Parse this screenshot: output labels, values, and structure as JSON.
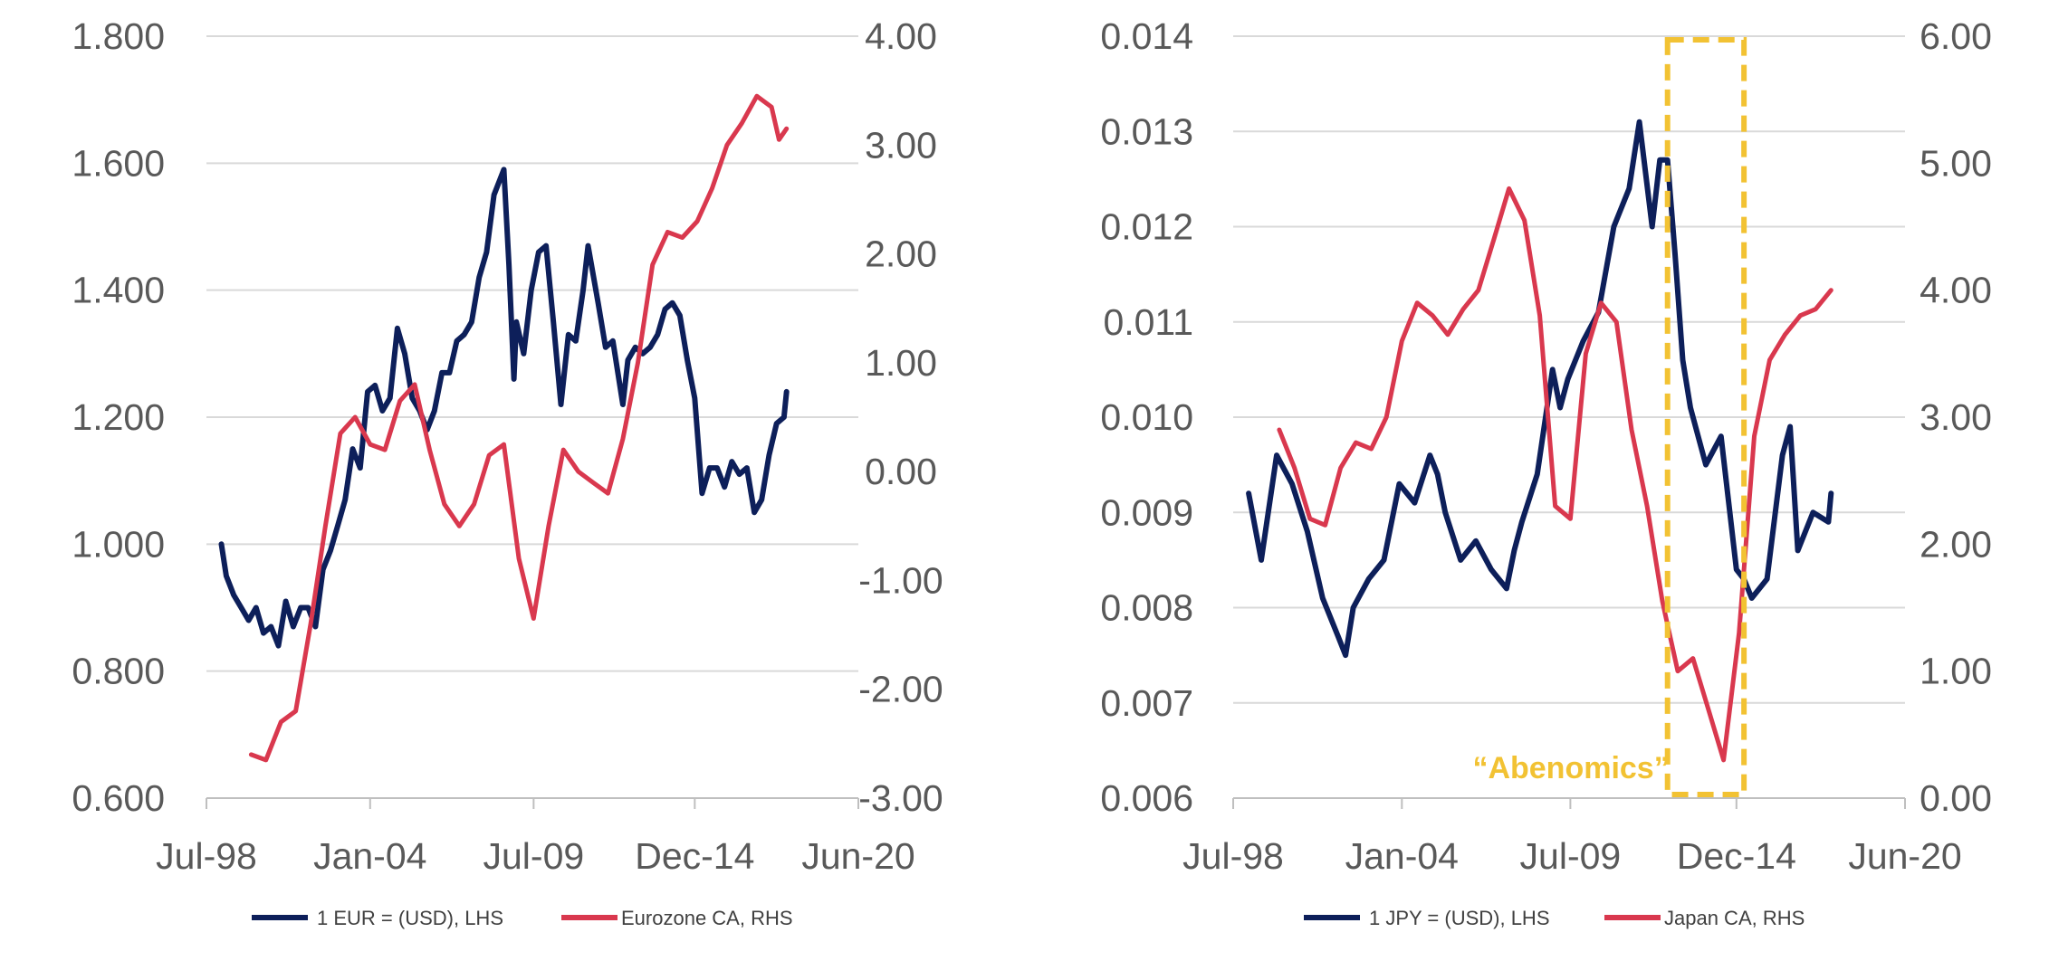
{
  "colors": {
    "fx_line": "#0d1f5a",
    "ca_line": "#d9384e",
    "grid": "#d9d9d9",
    "axis_text": "#595959",
    "highlight": "#f2c233"
  },
  "chart_data": [
    {
      "type": "line",
      "x_axis": {
        "type": "date",
        "tick_labels": [
          "Jul-98",
          "Jan-04",
          "Jul-09",
          "Dec-14",
          "Jun-20"
        ],
        "tick_dates": [
          "1998-07-01",
          "2004-01-01",
          "2009-07-01",
          "2014-12-01",
          "2020-06-01"
        ]
      },
      "y_left": {
        "range": [
          0.6,
          1.8
        ],
        "ticks": [
          0.6,
          0.8,
          1.0,
          1.2,
          1.4,
          1.6,
          1.8
        ],
        "tick_labels": [
          "0.600",
          "0.800",
          "1.000",
          "1.200",
          "1.400",
          "1.600",
          "1.800"
        ]
      },
      "y_right": {
        "range": [
          -3,
          4
        ],
        "ticks": [
          -3,
          -2,
          -1,
          0,
          1,
          2,
          3,
          4
        ],
        "tick_labels": [
          "-3.00",
          "-2.00",
          "-1.00",
          "0.00",
          "1.00",
          "2.00",
          "3.00",
          "4.00"
        ]
      },
      "grid": true,
      "legend_position": "bottom",
      "series": [
        {
          "name": "1 EUR = (USD), LHS",
          "axis": "left",
          "points": [
            [
              "1999-01-01",
              1.0
            ],
            [
              "1999-03-01",
              0.95
            ],
            [
              "1999-06-01",
              0.92
            ],
            [
              "1999-09-01",
              0.9
            ],
            [
              "1999-12-01",
              0.88
            ],
            [
              "2000-03-01",
              0.9
            ],
            [
              "2000-06-01",
              0.86
            ],
            [
              "2000-09-01",
              0.87
            ],
            [
              "2000-12-01",
              0.84
            ],
            [
              "2001-03-01",
              0.91
            ],
            [
              "2001-06-01",
              0.87
            ],
            [
              "2001-09-01",
              0.9
            ],
            [
              "2001-12-01",
              0.9
            ],
            [
              "2002-03-01",
              0.87
            ],
            [
              "2002-06-01",
              0.96
            ],
            [
              "2002-09-01",
              0.99
            ],
            [
              "2002-12-01",
              1.03
            ],
            [
              "2003-03-01",
              1.07
            ],
            [
              "2003-06-01",
              1.15
            ],
            [
              "2003-09-01",
              1.12
            ],
            [
              "2003-12-01",
              1.24
            ],
            [
              "2004-03-01",
              1.25
            ],
            [
              "2004-06-01",
              1.21
            ],
            [
              "2004-09-01",
              1.23
            ],
            [
              "2004-12-01",
              1.34
            ],
            [
              "2005-03-01",
              1.3
            ],
            [
              "2005-06-01",
              1.23
            ],
            [
              "2005-09-01",
              1.21
            ],
            [
              "2005-12-01",
              1.18
            ],
            [
              "2006-03-01",
              1.21
            ],
            [
              "2006-06-01",
              1.27
            ],
            [
              "2006-09-01",
              1.27
            ],
            [
              "2006-12-01",
              1.32
            ],
            [
              "2007-03-01",
              1.33
            ],
            [
              "2007-06-01",
              1.35
            ],
            [
              "2007-09-01",
              1.42
            ],
            [
              "2007-12-01",
              1.46
            ],
            [
              "2008-03-01",
              1.55
            ],
            [
              "2008-07-01",
              1.59
            ],
            [
              "2008-09-01",
              1.44
            ],
            [
              "2008-11-01",
              1.26
            ],
            [
              "2008-12-01",
              1.35
            ],
            [
              "2009-03-01",
              1.3
            ],
            [
              "2009-06-01",
              1.4
            ],
            [
              "2009-09-01",
              1.46
            ],
            [
              "2009-12-01",
              1.47
            ],
            [
              "2010-03-01",
              1.35
            ],
            [
              "2010-06-01",
              1.22
            ],
            [
              "2010-09-01",
              1.33
            ],
            [
              "2010-12-01",
              1.32
            ],
            [
              "2011-03-01",
              1.4
            ],
            [
              "2011-05-01",
              1.47
            ],
            [
              "2011-09-01",
              1.38
            ],
            [
              "2011-12-01",
              1.31
            ],
            [
              "2012-03-01",
              1.32
            ],
            [
              "2012-07-01",
              1.22
            ],
            [
              "2012-09-01",
              1.29
            ],
            [
              "2012-12-01",
              1.31
            ],
            [
              "2013-03-01",
              1.3
            ],
            [
              "2013-06-01",
              1.31
            ],
            [
              "2013-09-01",
              1.33
            ],
            [
              "2013-12-01",
              1.37
            ],
            [
              "2014-03-01",
              1.38
            ],
            [
              "2014-06-01",
              1.36
            ],
            [
              "2014-09-01",
              1.29
            ],
            [
              "2014-12-01",
              1.23
            ],
            [
              "2015-03-01",
              1.08
            ],
            [
              "2015-06-01",
              1.12
            ],
            [
              "2015-09-01",
              1.12
            ],
            [
              "2015-12-01",
              1.09
            ],
            [
              "2016-03-01",
              1.13
            ],
            [
              "2016-06-01",
              1.11
            ],
            [
              "2016-09-01",
              1.12
            ],
            [
              "2016-12-01",
              1.05
            ],
            [
              "2017-03-01",
              1.07
            ],
            [
              "2017-06-01",
              1.14
            ],
            [
              "2017-09-01",
              1.19
            ],
            [
              "2017-12-01",
              1.2
            ],
            [
              "2018-01-01",
              1.24
            ]
          ]
        },
        {
          "name": "Eurozone CA, RHS",
          "axis": "right",
          "points": [
            [
              "2000-01-01",
              -2.6
            ],
            [
              "2000-07-01",
              -2.65
            ],
            [
              "2001-01-01",
              -2.3
            ],
            [
              "2001-07-01",
              -2.2
            ],
            [
              "2002-01-01",
              -1.4
            ],
            [
              "2002-07-01",
              -0.5
            ],
            [
              "2003-01-01",
              0.35
            ],
            [
              "2003-07-01",
              0.5
            ],
            [
              "2004-01-01",
              0.25
            ],
            [
              "2004-07-01",
              0.2
            ],
            [
              "2005-01-01",
              0.65
            ],
            [
              "2005-07-01",
              0.8
            ],
            [
              "2006-01-01",
              0.2
            ],
            [
              "2006-07-01",
              -0.3
            ],
            [
              "2007-01-01",
              -0.5
            ],
            [
              "2007-07-01",
              -0.3
            ],
            [
              "2008-01-01",
              0.15
            ],
            [
              "2008-07-01",
              0.25
            ],
            [
              "2009-01-01",
              -0.8
            ],
            [
              "2009-07-01",
              -1.35
            ],
            [
              "2010-01-01",
              -0.5
            ],
            [
              "2010-07-01",
              0.2
            ],
            [
              "2011-01-01",
              0.0
            ],
            [
              "2011-07-01",
              -0.1
            ],
            [
              "2012-01-01",
              -0.2
            ],
            [
              "2012-07-01",
              0.3
            ],
            [
              "2013-01-01",
              1.0
            ],
            [
              "2013-07-01",
              1.9
            ],
            [
              "2014-01-01",
              2.2
            ],
            [
              "2014-07-01",
              2.15
            ],
            [
              "2015-01-01",
              2.3
            ],
            [
              "2015-07-01",
              2.6
            ],
            [
              "2016-01-01",
              3.0
            ],
            [
              "2016-07-01",
              3.2
            ],
            [
              "2017-01-01",
              3.45
            ],
            [
              "2017-07-01",
              3.35
            ],
            [
              "2017-10-01",
              3.05
            ],
            [
              "2018-01-01",
              3.15
            ]
          ]
        }
      ]
    },
    {
      "type": "line",
      "x_axis": {
        "type": "date",
        "tick_labels": [
          "Jul-98",
          "Jan-04",
          "Jul-09",
          "Dec-14",
          "Jun-20"
        ],
        "tick_dates": [
          "1998-07-01",
          "2004-01-01",
          "2009-07-01",
          "2014-12-01",
          "2020-06-01"
        ]
      },
      "y_left": {
        "range": [
          0.006,
          0.014
        ],
        "ticks": [
          0.006,
          0.007,
          0.008,
          0.009,
          0.01,
          0.011,
          0.012,
          0.013,
          0.014
        ],
        "tick_labels": [
          "0.006",
          "0.007",
          "0.008",
          "0.009",
          "0.010",
          "0.011",
          "0.012",
          "0.013",
          "0.014"
        ]
      },
      "y_right": {
        "range": [
          0,
          6
        ],
        "ticks": [
          0,
          1,
          2,
          3,
          4,
          5,
          6
        ],
        "tick_labels": [
          "0.00",
          "1.00",
          "2.00",
          "3.00",
          "4.00",
          "5.00",
          "6.00"
        ]
      },
      "grid": true,
      "legend_position": "bottom",
      "annotation": {
        "text": "“Abenomics”",
        "date_from": "2012-09-01",
        "date_to": "2015-03-01"
      },
      "series": [
        {
          "name": "1 JPY = (USD), LHS",
          "axis": "left",
          "points": [
            [
              "1999-01-01",
              0.0092
            ],
            [
              "1999-06-01",
              0.0085
            ],
            [
              "1999-12-01",
              0.0096
            ],
            [
              "2000-06-01",
              0.0093
            ],
            [
              "2000-12-01",
              0.0088
            ],
            [
              "2001-06-01",
              0.0081
            ],
            [
              "2001-12-01",
              0.0077
            ],
            [
              "2002-03-01",
              0.0075
            ],
            [
              "2002-06-01",
              0.008
            ],
            [
              "2002-12-01",
              0.0083
            ],
            [
              "2003-06-01",
              0.0085
            ],
            [
              "2003-12-01",
              0.0093
            ],
            [
              "2004-06-01",
              0.0091
            ],
            [
              "2004-12-01",
              0.0096
            ],
            [
              "2005-03-01",
              0.0094
            ],
            [
              "2005-06-01",
              0.009
            ],
            [
              "2005-12-01",
              0.0085
            ],
            [
              "2006-06-01",
              0.0087
            ],
            [
              "2006-12-01",
              0.0084
            ],
            [
              "2007-06-01",
              0.0082
            ],
            [
              "2007-09-01",
              0.0086
            ],
            [
              "2007-12-01",
              0.0089
            ],
            [
              "2008-06-01",
              0.0094
            ],
            [
              "2008-12-01",
              0.0105
            ],
            [
              "2009-03-01",
              0.0101
            ],
            [
              "2009-06-01",
              0.0104
            ],
            [
              "2009-12-01",
              0.0108
            ],
            [
              "2010-06-01",
              0.0111
            ],
            [
              "2010-12-01",
              0.012
            ],
            [
              "2011-06-01",
              0.0124
            ],
            [
              "2011-10-01",
              0.0131
            ],
            [
              "2012-03-01",
              0.012
            ],
            [
              "2012-06-01",
              0.0127
            ],
            [
              "2012-09-01",
              0.0127
            ],
            [
              "2012-12-01",
              0.0117
            ],
            [
              "2013-03-01",
              0.0106
            ],
            [
              "2013-06-01",
              0.0101
            ],
            [
              "2013-12-01",
              0.0095
            ],
            [
              "2014-06-01",
              0.0098
            ],
            [
              "2014-12-01",
              0.0084
            ],
            [
              "2015-03-01",
              0.0083
            ],
            [
              "2015-06-01",
              0.0081
            ],
            [
              "2015-12-01",
              0.0083
            ],
            [
              "2016-06-01",
              0.0096
            ],
            [
              "2016-09-01",
              0.0099
            ],
            [
              "2016-12-01",
              0.0086
            ],
            [
              "2017-06-01",
              0.009
            ],
            [
              "2017-12-01",
              0.0089
            ],
            [
              "2018-01-01",
              0.0092
            ]
          ]
        },
        {
          "name": "Japan CA, RHS",
          "axis": "right",
          "points": [
            [
              "2000-01-01",
              2.9
            ],
            [
              "2000-07-01",
              2.6
            ],
            [
              "2001-01-01",
              2.2
            ],
            [
              "2001-07-01",
              2.15
            ],
            [
              "2002-01-01",
              2.6
            ],
            [
              "2002-07-01",
              2.8
            ],
            [
              "2003-01-01",
              2.75
            ],
            [
              "2003-07-01",
              3.0
            ],
            [
              "2004-01-01",
              3.6
            ],
            [
              "2004-07-01",
              3.9
            ],
            [
              "2005-01-01",
              3.8
            ],
            [
              "2005-07-01",
              3.65
            ],
            [
              "2006-01-01",
              3.85
            ],
            [
              "2006-07-01",
              4.0
            ],
            [
              "2007-01-01",
              4.4
            ],
            [
              "2007-07-01",
              4.8
            ],
            [
              "2008-01-01",
              4.55
            ],
            [
              "2008-07-01",
              3.8
            ],
            [
              "2009-01-01",
              2.3
            ],
            [
              "2009-07-01",
              2.2
            ],
            [
              "2010-01-01",
              3.5
            ],
            [
              "2010-07-01",
              3.9
            ],
            [
              "2011-01-01",
              3.75
            ],
            [
              "2011-07-01",
              2.9
            ],
            [
              "2012-01-01",
              2.3
            ],
            [
              "2012-07-01",
              1.55
            ],
            [
              "2013-01-01",
              1.0
            ],
            [
              "2013-07-01",
              1.1
            ],
            [
              "2014-01-01",
              0.7
            ],
            [
              "2014-07-01",
              0.3
            ],
            [
              "2015-01-01",
              1.3
            ],
            [
              "2015-07-01",
              2.85
            ],
            [
              "2016-01-01",
              3.45
            ],
            [
              "2016-07-01",
              3.65
            ],
            [
              "2017-01-01",
              3.8
            ],
            [
              "2017-07-01",
              3.85
            ],
            [
              "2018-01-01",
              4.0
            ]
          ]
        }
      ]
    }
  ]
}
